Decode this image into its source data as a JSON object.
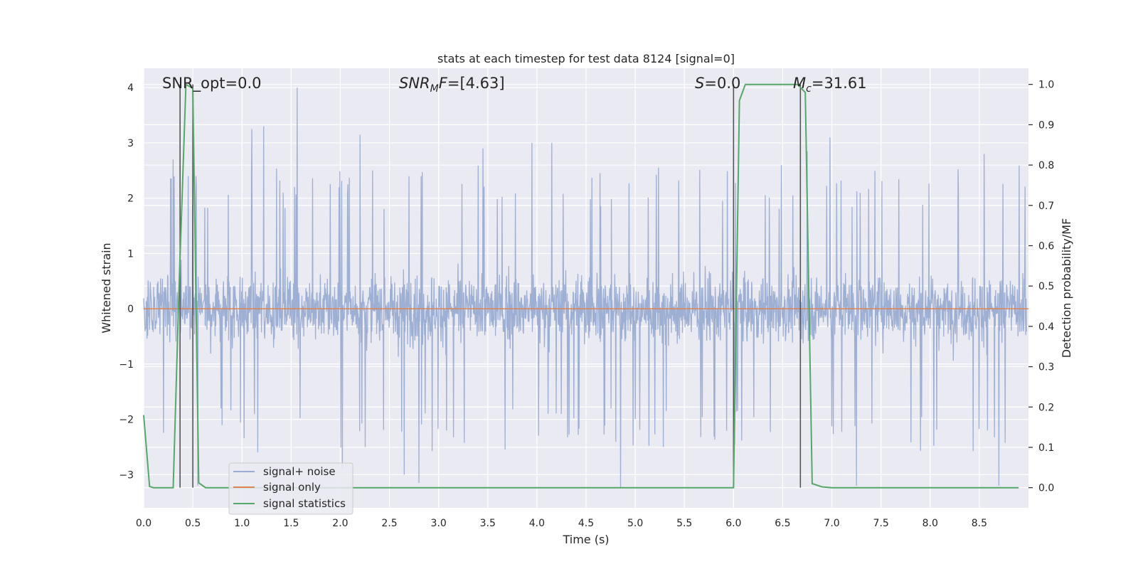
{
  "chart_data": {
    "type": "line",
    "title": "stats at each timestep for test data 8124 [signal=0]",
    "xlabel": "Time (s)",
    "ylabel_left": "Whitened strain",
    "ylabel_right": "Detection probability/MF",
    "xlim": [
      0.0,
      9.0
    ],
    "ylim_left": [
      -3.6,
      4.35
    ],
    "ylim_right": [
      -0.05,
      1.04
    ],
    "x_ticks": [
      0.0,
      0.5,
      1.0,
      1.5,
      2.0,
      2.5,
      3.0,
      3.5,
      4.0,
      4.5,
      5.0,
      5.5,
      6.0,
      6.5,
      7.0,
      7.5,
      8.0,
      8.5
    ],
    "x_tick_labels": [
      "0.0",
      "0.5",
      "1.0",
      "1.5",
      "2.0",
      "2.5",
      "3.0",
      "3.5",
      "4.0",
      "4.5",
      "5.0",
      "5.5",
      "6.0",
      "6.5",
      "7.0",
      "7.5",
      "8.0",
      "8.5"
    ],
    "y_left_ticks": [
      4,
      3,
      2,
      1,
      0,
      -1,
      -2,
      -3
    ],
    "y_left_tick_labels": [
      "4",
      "3",
      "2",
      "1",
      "0",
      "−1",
      "−2",
      "−3"
    ],
    "y_right_ticks": [
      1.0,
      0.9,
      0.8,
      0.7,
      0.6,
      0.5,
      0.4,
      0.3,
      0.2,
      0.1,
      0.0
    ],
    "y_right_tick_labels": [
      "1.0",
      "0.9",
      "0.8",
      "0.7",
      "0.6",
      "0.5",
      "0.4",
      "0.3",
      "0.2",
      "0.1",
      "0.0"
    ],
    "grid": true,
    "legend_position": "lower-left",
    "series": [
      {
        "name": "signal+ noise",
        "axis": "left",
        "color": "#9aacd2",
        "kind": "noise",
        "amplitude_typical": [
          -1.8,
          1.8
        ],
        "amplitude_peaks": [
          -3.3,
          4.0
        ],
        "peaks": [
          [
            0.3,
            2.7
          ],
          [
            0.53,
            2.4
          ],
          [
            1.1,
            3.25
          ],
          [
            1.22,
            3.3
          ],
          [
            1.56,
            4.0
          ],
          [
            2.2,
            3.15
          ],
          [
            3.45,
            2.9
          ],
          [
            3.95,
            3.0
          ],
          [
            4.15,
            3.0
          ],
          [
            6.75,
            2.85
          ],
          [
            6.98,
            3.1
          ],
          [
            8.55,
            2.8
          ],
          [
            2.02,
            -2.9
          ],
          [
            2.65,
            -3.0
          ],
          [
            2.8,
            -3.15
          ],
          [
            4.85,
            -3.25
          ],
          [
            7.25,
            -3.2
          ],
          [
            8.7,
            -3.2
          ],
          [
            0.55,
            -3.2
          ]
        ]
      },
      {
        "name": "signal only",
        "axis": "left",
        "color": "#dd8452",
        "x": [
          0.0,
          9.0
        ],
        "y": [
          0.0,
          0.0
        ]
      },
      {
        "name": "signal statistics",
        "axis": "right",
        "color": "#55a868",
        "x": [
          0.0,
          0.06,
          0.1,
          0.3,
          0.36,
          0.43,
          0.5,
          0.56,
          0.63,
          0.7,
          6.0,
          6.06,
          6.12,
          6.2,
          6.5,
          6.65,
          6.73,
          6.8,
          6.9,
          7.0,
          8.9
        ],
        "y": [
          0.18,
          0.003,
          0.0,
          0.0,
          0.5,
          1.0,
          0.99,
          0.012,
          0.0,
          0.0,
          0.0,
          0.96,
          1.0,
          1.0,
          1.0,
          1.0,
          0.98,
          0.01,
          0.002,
          0.0,
          0.0
        ]
      }
    ],
    "vertical_lines": [
      0.37,
      0.5,
      6.0,
      6.68
    ],
    "vertical_line_color": "#555555",
    "annotations": {
      "snr_opt": {
        "prefix": "SNR_opt=",
        "value": "0.0"
      },
      "snr_mf": {
        "base": "SNR",
        "sub": "M",
        "suffix": "F",
        "eq": "=",
        "value": "[4.63]"
      },
      "s": {
        "symbol": "S",
        "eq": "=",
        "value": "0.0"
      },
      "mc": {
        "base": "M",
        "sub": "c",
        "eq": "=",
        "value": "31.61"
      }
    }
  }
}
